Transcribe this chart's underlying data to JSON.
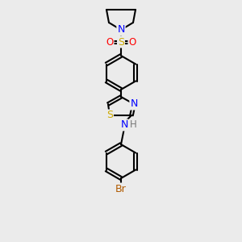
{
  "bg_color": "#ebebeb",
  "atom_colors": {
    "C": "#000000",
    "N": "#0000ff",
    "S_thz": "#ccaa00",
    "S_sulf": "#ccaa00",
    "O": "#ff0000",
    "Br": "#b05a00",
    "H": "#777777"
  },
  "bond_color": "#000000",
  "bond_lw": 1.5,
  "figsize": [
    3.0,
    3.0
  ],
  "dpi": 100
}
